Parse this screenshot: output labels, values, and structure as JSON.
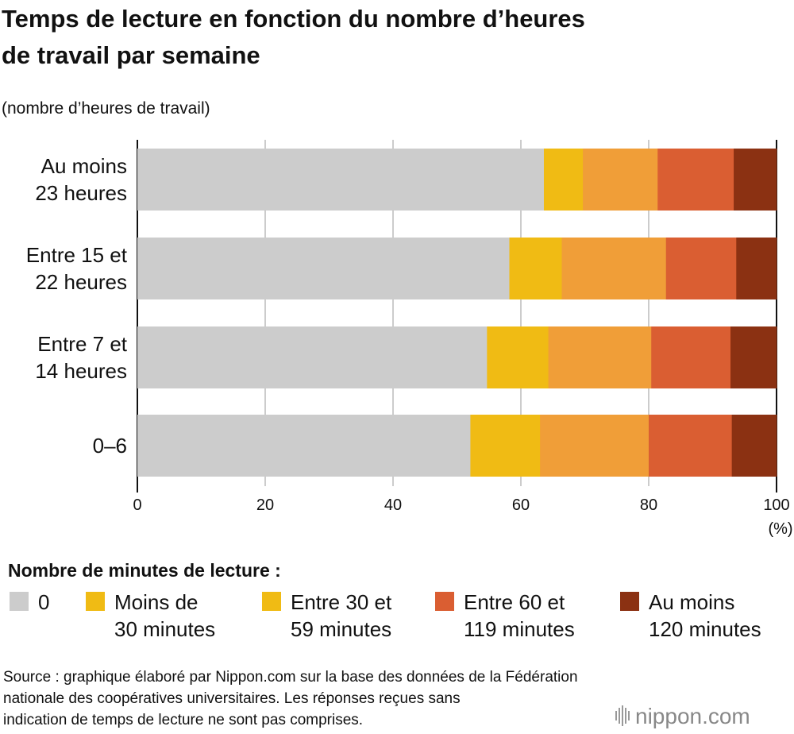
{
  "chart_data": {
    "type": "bar",
    "orientation": "horizontal",
    "stacked": true,
    "title": [
      "Temps de lecture en fonction du nombre d’heures",
      "de travail par semaine"
    ],
    "ylabel": "(nombre d’heures de travail)",
    "xunit": "(%)",
    "xlim": [
      0,
      100
    ],
    "xticks": [
      "0",
      "20",
      "40",
      "60",
      "80",
      "100"
    ],
    "grid": true,
    "categories": [
      [
        "Au moins",
        "23 heures"
      ],
      [
        "Entre 15 et",
        "22 heures"
      ],
      [
        "Entre 7 et",
        "14 heures"
      ],
      [
        "0–6"
      ]
    ],
    "series": [
      {
        "name": [
          "0"
        ],
        "color": "#cccccc",
        "legend_color": "#cccccc",
        "values": [
          63.6,
          58.2,
          54.7,
          52.1
        ]
      },
      {
        "name": [
          "Moins de",
          "30 minutes"
        ],
        "color": "#f0bb14",
        "legend_color": "#f0bb14",
        "values": [
          6.1,
          8.2,
          9.6,
          10.9
        ]
      },
      {
        "name": [
          "Entre 30 et",
          "59 minutes"
        ],
        "color": "#f09e38",
        "legend_color": "#f0bb14",
        "values": [
          11.7,
          16.3,
          16.1,
          17.0
        ]
      },
      {
        "name": [
          "Entre 60 et",
          "119 minutes"
        ],
        "color": "#da5e32",
        "legend_color": "#da5e32",
        "values": [
          11.9,
          11.0,
          12.4,
          13.0
        ]
      },
      {
        "name": [
          "Au moins",
          "120 minutes"
        ],
        "color": "#8b3112",
        "legend_color": "#8b3112",
        "values": [
          6.7,
          6.3,
          7.2,
          7.0
        ]
      }
    ],
    "legend_title": "Nombre de minutes de lecture :",
    "legend_position": "bottom"
  },
  "source": [
    "Source : graphique élaboré par Nippon.com sur la base des données de la Fédération",
    "nationale des coopératives universitaires. Les réponses reçues sans",
    "indication de temps de lecture ne sont pas comprises."
  ],
  "logo": "nippon.com"
}
